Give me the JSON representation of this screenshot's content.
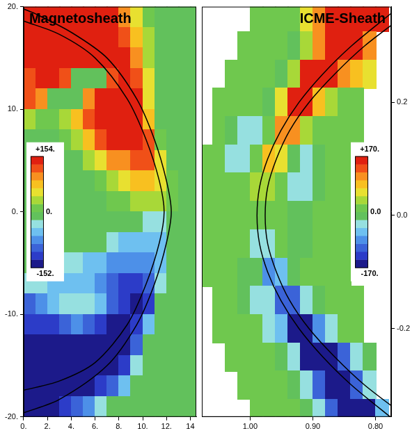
{
  "chart_data": [
    {
      "type": "heatmap",
      "title": "Magnetosheath",
      "grid": false,
      "xlim": [
        0,
        14.5
      ],
      "xticks": [
        {
          "value": 0,
          "label": "0."
        },
        {
          "value": 2,
          "label": "2."
        },
        {
          "value": 4,
          "label": "4."
        },
        {
          "value": 6,
          "label": "6."
        },
        {
          "value": 8,
          "label": "8."
        },
        {
          "value": 10,
          "label": "10."
        },
        {
          "value": 12,
          "label": "12."
        },
        {
          "value": 14,
          "label": "14"
        }
      ],
      "ylim": [
        -20,
        20
      ],
      "yticks": [
        {
          "value": -20,
          "label": "-20."
        },
        {
          "value": -10,
          "label": "-10."
        },
        {
          "value": 0,
          "label": "0."
        },
        {
          "value": 10,
          "label": "10."
        },
        {
          "value": 20,
          "label": "20."
        }
      ],
      "colorbar": {
        "range": [
          -152,
          154
        ],
        "ticks": [
          {
            "value": 154,
            "label": "+154."
          },
          {
            "value": 0,
            "label": "0."
          },
          {
            "value": -152,
            "label": "-152."
          }
        ]
      },
      "x": [
        0.5,
        1.5,
        2.5,
        3.5,
        4.5,
        5.5,
        6.5,
        7.5,
        8.5,
        9.5,
        10.5,
        11.5,
        12.5,
        13.5,
        14.5
      ],
      "y": [
        19,
        17,
        15,
        13,
        11,
        9,
        7,
        5,
        3,
        1,
        -1,
        -3,
        -5,
        -7,
        -9,
        -11,
        -13,
        -15,
        -17,
        -19
      ],
      "z": [
        [
          150,
          150,
          150,
          150,
          150,
          150,
          150,
          140,
          110,
          60,
          20,
          0,
          0,
          0,
          0
        ],
        [
          150,
          150,
          150,
          150,
          150,
          150,
          150,
          150,
          130,
          80,
          30,
          0,
          0,
          0,
          0
        ],
        [
          140,
          150,
          150,
          150,
          150,
          150,
          150,
          150,
          140,
          100,
          40,
          0,
          0,
          0,
          0
        ],
        [
          130,
          140,
          140,
          120,
          -20,
          -20,
          -20,
          130,
          150,
          130,
          50,
          0,
          0,
          0,
          0
        ],
        [
          120,
          100,
          -20,
          -20,
          -20,
          100,
          140,
          150,
          150,
          140,
          60,
          0,
          0,
          0,
          0
        ],
        [
          30,
          20,
          20,
          40,
          80,
          120,
          140,
          150,
          150,
          150,
          80,
          0,
          0,
          0,
          0
        ],
        [
          0,
          0,
          0,
          20,
          40,
          80,
          120,
          140,
          150,
          150,
          120,
          20,
          0,
          0,
          0
        ],
        [
          0,
          0,
          0,
          0,
          0,
          30,
          60,
          90,
          110,
          120,
          120,
          50,
          0,
          0,
          0
        ],
        [
          0,
          0,
          0,
          0,
          0,
          0,
          20,
          40,
          60,
          70,
          80,
          60,
          10,
          0,
          0
        ],
        [
          0,
          0,
          0,
          0,
          0,
          0,
          0,
          10,
          20,
          30,
          40,
          40,
          10,
          0,
          0
        ],
        [
          0,
          0,
          0,
          0,
          0,
          0,
          0,
          0,
          -10,
          -20,
          -30,
          -30,
          -10,
          0,
          0
        ],
        [
          0,
          0,
          0,
          0,
          0,
          -10,
          -20,
          -40,
          -60,
          -60,
          -60,
          -50,
          -10,
          0,
          0
        ],
        [
          -10,
          -10,
          -20,
          -30,
          -40,
          -50,
          -60,
          -70,
          -80,
          -80,
          -80,
          -60,
          0,
          0,
          0
        ],
        [
          -40,
          -40,
          -50,
          -60,
          -60,
          -60,
          -70,
          -90,
          -110,
          -120,
          -100,
          -30,
          0,
          0,
          0
        ],
        [
          -90,
          -80,
          -60,
          -40,
          -30,
          -40,
          -60,
          -100,
          -130,
          -140,
          -110,
          0,
          0,
          0,
          0
        ],
        [
          -130,
          -130,
          -120,
          -100,
          -80,
          -100,
          -120,
          -140,
          -150,
          -130,
          -60,
          0,
          0,
          0,
          0
        ],
        [
          -150,
          -150,
          -150,
          -150,
          -140,
          -140,
          -150,
          -150,
          -150,
          -100,
          -20,
          0,
          0,
          0,
          0
        ],
        [
          -150,
          -150,
          -150,
          -150,
          -150,
          -150,
          -150,
          -140,
          -110,
          -40,
          0,
          0,
          0,
          0,
          0
        ],
        [
          -150,
          -150,
          -150,
          -150,
          -150,
          -140,
          -120,
          -90,
          -50,
          -10,
          0,
          0,
          0,
          0,
          0
        ],
        [
          -150,
          -150,
          -140,
          -120,
          -100,
          -70,
          -40,
          -20,
          0,
          0,
          0,
          0,
          0,
          0,
          0
        ]
      ],
      "lines": [
        {
          "color": "#000000",
          "x": [
            -0.5,
            1,
            4,
            7,
            9.5,
            11,
            12,
            12.4,
            12,
            11,
            9.5,
            7,
            3,
            0
          ],
          "y": [
            20,
            19.3,
            17.5,
            15,
            11,
            7,
            3,
            0,
            -3,
            -7,
            -11,
            -15,
            -18.3,
            -19.6
          ]
        },
        {
          "color": "#000000",
          "x": [
            0,
            3,
            6,
            8.7,
            10.3,
            11.4,
            11.8,
            11.4,
            10.3,
            8.7,
            6,
            3,
            0
          ],
          "y": [
            18.6,
            17.3,
            15,
            11,
            7,
            3,
            0,
            -3,
            -7,
            -11,
            -14.7,
            -16.5,
            -17.4
          ]
        }
      ]
    },
    {
      "type": "heatmap",
      "title": "ICME-Sheath",
      "grid": false,
      "xlim": [
        1.077,
        0.775
      ],
      "xticks": [
        {
          "value": 1,
          "label": "1.00"
        },
        {
          "value": 0.9,
          "label": "0.90"
        },
        {
          "value": 0.8,
          "label": "0.80"
        }
      ],
      "ylim": [
        -0.356,
        0.369
      ],
      "yticks": [
        -0.2,
        {
          "value": 0,
          "label": "0.0"
        },
        0.2
      ],
      "colorbar": {
        "range": [
          -170,
          170
        ],
        "ticks": [
          {
            "value": 170,
            "label": "+170."
          },
          {
            "value": 0,
            "label": "0.0"
          },
          {
            "value": -170,
            "label": "-170."
          }
        ]
      },
      "x": [
        1.07,
        1.05,
        1.03,
        1.01,
        0.99,
        0.97,
        0.95,
        0.93,
        0.91,
        0.89,
        0.87,
        0.85,
        0.83,
        0.81,
        0.79
      ],
      "y": [
        0.35,
        0.3,
        0.25,
        0.2,
        0.15,
        0.1,
        0.05,
        0,
        -0.05,
        -0.1,
        -0.15,
        -0.2,
        -0.25,
        -0.3,
        -0.35
      ],
      "z": [
        [
          null,
          null,
          null,
          null,
          0,
          0,
          0,
          20,
          60,
          120,
          150,
          170,
          170,
          170,
          150
        ],
        [
          null,
          null,
          null,
          0,
          0,
          0,
          0,
          -20,
          30,
          100,
          170,
          170,
          170,
          120,
          null
        ],
        [
          null,
          null,
          0,
          0,
          0,
          0,
          -20,
          40,
          150,
          170,
          170,
          120,
          80,
          60,
          null
        ],
        [
          null,
          0,
          0,
          0,
          0,
          -20,
          60,
          170,
          150,
          80,
          40,
          20,
          0,
          null,
          null
        ],
        [
          null,
          0,
          -10,
          -30,
          -30,
          20,
          120,
          100,
          40,
          20,
          0,
          0,
          0,
          null,
          null
        ],
        [
          0,
          0,
          -30,
          -30,
          0,
          80,
          70,
          -20,
          -30,
          -20,
          0,
          0,
          null,
          null,
          null
        ],
        [
          0,
          0,
          0,
          0,
          40,
          30,
          0,
          -30,
          -30,
          -10,
          0,
          0,
          null,
          null,
          null
        ],
        [
          0,
          0,
          0,
          0,
          10,
          0,
          0,
          -20,
          -20,
          0,
          0,
          0,
          null,
          null,
          null
        ],
        [
          0,
          0,
          0,
          0,
          -40,
          -30,
          0,
          -10,
          -10,
          0,
          0,
          0,
          null,
          null,
          null
        ],
        [
          0,
          0,
          0,
          -10,
          -20,
          -80,
          -70,
          -20,
          0,
          0,
          0,
          0,
          null,
          null,
          null
        ],
        [
          null,
          0,
          0,
          -10,
          -30,
          -40,
          -120,
          -100,
          -40,
          -20,
          0,
          0,
          0,
          null,
          null
        ],
        [
          null,
          0,
          0,
          0,
          0,
          -30,
          -60,
          -170,
          -150,
          -80,
          -30,
          0,
          0,
          null,
          null
        ],
        [
          null,
          null,
          0,
          0,
          0,
          0,
          -20,
          -40,
          -150,
          -170,
          -170,
          -100,
          -30,
          -20,
          null
        ],
        [
          null,
          null,
          null,
          0,
          0,
          0,
          0,
          -20,
          -40,
          -120,
          -170,
          -170,
          -120,
          -40,
          null
        ],
        [
          null,
          null,
          null,
          null,
          0,
          0,
          0,
          0,
          -20,
          -40,
          -100,
          -150,
          -170,
          -150,
          -60
        ]
      ],
      "lines": [
        {
          "color": "#000000",
          "x": [
            0.772,
            0.838,
            0.884,
            0.922,
            0.951,
            0.972,
            0.985,
            0.989,
            0.985,
            0.972,
            0.951,
            0.922,
            0.884,
            0.838,
            0.772
          ],
          "y": [
            0.36,
            0.3,
            0.25,
            0.2,
            0.15,
            0.1,
            0.05,
            0,
            -0.05,
            -0.1,
            -0.15,
            -0.2,
            -0.25,
            -0.3,
            -0.36
          ]
        },
        {
          "color": "#000000",
          "x": [
            0.746,
            0.817,
            0.865,
            0.906,
            0.937,
            0.958,
            0.972,
            0.976,
            0.972,
            0.958,
            0.937,
            0.906,
            0.865,
            0.817,
            0.746
          ],
          "y": [
            0.36,
            0.3,
            0.25,
            0.2,
            0.15,
            0.1,
            0.05,
            0,
            -0.05,
            -0.1,
            -0.15,
            -0.2,
            -0.25,
            -0.3,
            -0.36
          ]
        }
      ]
    }
  ]
}
